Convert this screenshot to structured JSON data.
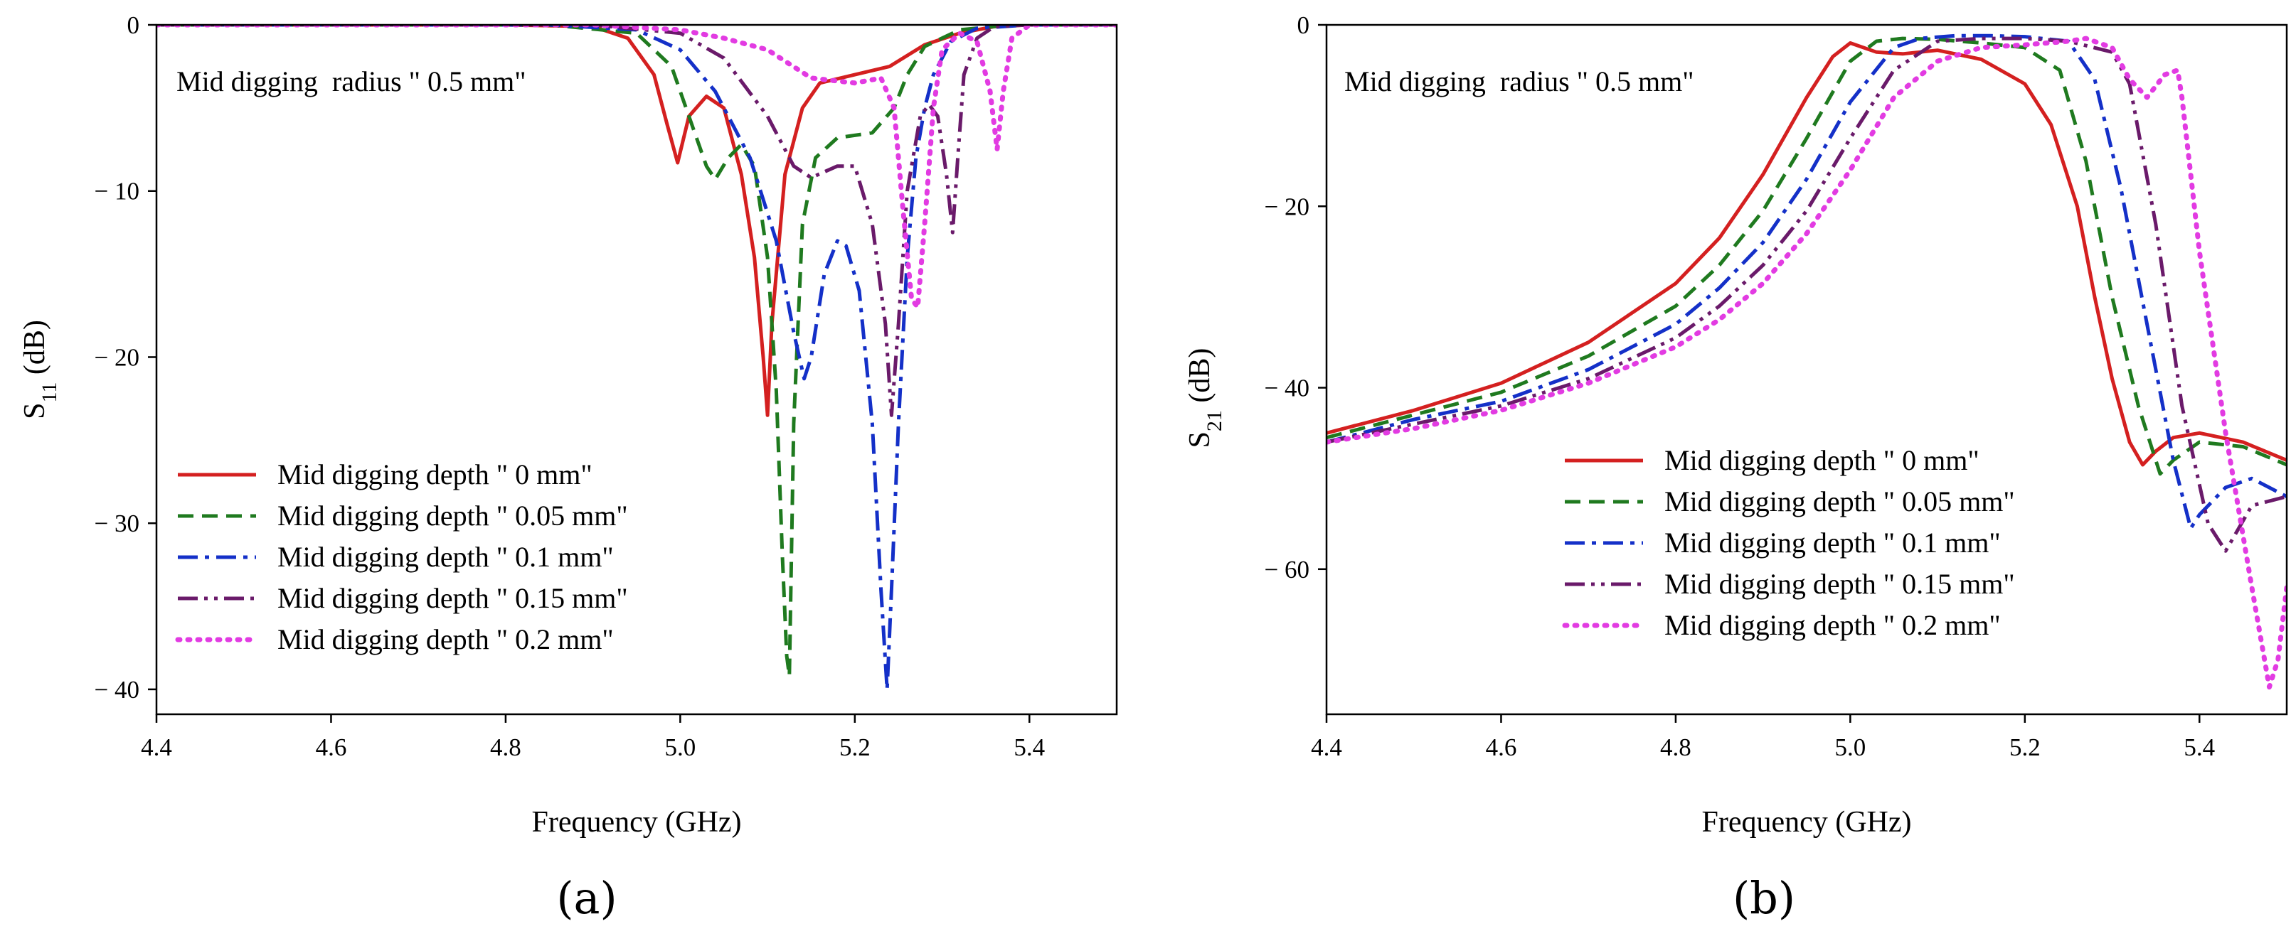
{
  "chart_data": [
    {
      "type": "line",
      "panel_label": "(a)",
      "annotation": "Mid digging  radius \" 0.5 mm\"",
      "xlabel": "Frequency (GHz)",
      "ylabel": "S11 (dB)",
      "ylabel_main": "S",
      "ylabel_sub": "11",
      "ylabel_unit": " (dB)",
      "xlim": [
        4.4,
        5.5
      ],
      "ylim": [
        -41.5,
        0
      ],
      "xticks": [
        4.4,
        4.6,
        4.8,
        5.0,
        5.2,
        5.4
      ],
      "xtick_labels": [
        "4.4",
        "4.6",
        "4.8",
        "5.0",
        "5.2",
        "5.4"
      ],
      "yticks": [
        0,
        -10,
        -20,
        -30,
        -40
      ],
      "ytick_labels": [
        "0",
        "− 10",
        "− 20",
        "− 30",
        "− 40"
      ],
      "legend_position": "lower-left",
      "series": [
        {
          "name": "Mid digging depth \" 0 mm\"",
          "color": "#d42020",
          "style": "solid",
          "x": [
            4.4,
            4.8,
            4.9,
            4.94,
            4.97,
            4.985,
            4.997,
            5.01,
            5.03,
            5.05,
            5.07,
            5.085,
            5.095,
            5.1,
            5.105,
            5.12,
            5.14,
            5.16,
            5.2,
            5.24,
            5.28,
            5.32,
            5.36,
            5.4,
            5.5
          ],
          "y": [
            0,
            0,
            -0.1,
            -0.8,
            -3,
            -6,
            -8.3,
            -5.5,
            -4.3,
            -5,
            -9,
            -14,
            -20,
            -23.5,
            -18,
            -9,
            -5,
            -3.5,
            -3,
            -2.5,
            -1.2,
            -0.5,
            -0.1,
            0,
            0
          ]
        },
        {
          "name": "Mid digging depth \" 0.05 mm\"",
          "color": "#1f7a1f",
          "style": "dashed",
          "x": [
            4.4,
            4.85,
            4.95,
            4.99,
            5.01,
            5.03,
            5.04,
            5.055,
            5.07,
            5.085,
            5.1,
            5.11,
            5.117,
            5.122,
            5.125,
            5.13,
            5.14,
            5.155,
            5.18,
            5.22,
            5.245,
            5.26,
            5.28,
            5.32,
            5.38,
            5.5
          ],
          "y": [
            0,
            0,
            -0.5,
            -2.5,
            -5.5,
            -8.5,
            -9.3,
            -8,
            -7.2,
            -8.5,
            -14,
            -22,
            -32,
            -38,
            -39.2,
            -24,
            -12,
            -8,
            -6.8,
            -6.5,
            -5,
            -3,
            -1.3,
            -0.3,
            0,
            0
          ]
        },
        {
          "name": "Mid digging depth \" 0.1 mm\"",
          "color": "#1430c8",
          "style": "dashdot",
          "x": [
            4.4,
            4.85,
            4.95,
            5.0,
            5.04,
            5.08,
            5.11,
            5.13,
            5.142,
            5.15,
            5.165,
            5.18,
            5.19,
            5.205,
            5.22,
            5.23,
            5.237,
            5.242,
            5.25,
            5.26,
            5.27,
            5.28,
            5.29,
            5.31,
            5.34,
            5.4,
            5.5
          ],
          "y": [
            0,
            0,
            -0.3,
            -1.5,
            -4,
            -8,
            -13,
            -18.5,
            -21.3,
            -20,
            -15,
            -13,
            -13.3,
            -16,
            -24,
            -34,
            -40,
            -34,
            -24,
            -14,
            -8,
            -5,
            -3,
            -1,
            -0.2,
            0,
            0
          ]
        },
        {
          "name": "Mid digging depth \" 0.15 mm\"",
          "color": "#6a1a6a",
          "style": "dashdotdot",
          "x": [
            4.4,
            4.9,
            5.0,
            5.05,
            5.1,
            5.13,
            5.15,
            5.18,
            5.2,
            5.22,
            5.235,
            5.242,
            5.25,
            5.26,
            5.275,
            5.285,
            5.295,
            5.305,
            5.312,
            5.318,
            5.325,
            5.34,
            5.36,
            5.4,
            5.5
          ],
          "y": [
            0,
            0,
            -0.5,
            -2,
            -5.5,
            -8.5,
            -9.2,
            -8.5,
            -8.5,
            -12,
            -18,
            -23.5,
            -18,
            -10,
            -5.5,
            -4.8,
            -5.5,
            -9,
            -12.5,
            -8,
            -3,
            -0.8,
            -0.1,
            0,
            0
          ]
        },
        {
          "name": "Mid digging depth \" 0.2 mm\"",
          "color": "#e23be2",
          "style": "dotted",
          "x": [
            4.4,
            4.9,
            5.0,
            5.05,
            5.1,
            5.15,
            5.2,
            5.23,
            5.245,
            5.255,
            5.265,
            5.272,
            5.28,
            5.29,
            5.3,
            5.32,
            5.34,
            5.355,
            5.363,
            5.37,
            5.38,
            5.4,
            5.5
          ],
          "y": [
            0,
            0,
            -0.3,
            -0.8,
            -1.5,
            -3.2,
            -3.5,
            -3.2,
            -5,
            -11,
            -16.5,
            -17,
            -12,
            -5,
            -1.5,
            -0.5,
            -1,
            -4,
            -7.5,
            -4,
            -0.8,
            0,
            0
          ]
        }
      ]
    },
    {
      "type": "line",
      "panel_label": "(b)",
      "annotation": "Mid digging  radius \" 0.5 mm\"",
      "xlabel": "Frequency (GHz)",
      "ylabel": "S21 (dB)",
      "ylabel_main": "S",
      "ylabel_sub": "21",
      "ylabel_unit": " (dB)",
      "xlim": [
        4.4,
        5.5
      ],
      "ylim": [
        -76,
        0
      ],
      "xticks": [
        4.4,
        4.6,
        4.8,
        5.0,
        5.2,
        5.4
      ],
      "xtick_labels": [
        "4.4",
        "4.6",
        "4.8",
        "5.0",
        "5.2",
        "5.4"
      ],
      "yticks": [
        0,
        -20,
        -40,
        -60
      ],
      "ytick_labels": [
        "0",
        "− 20",
        "− 40",
        "− 60"
      ],
      "legend_position": "lower-right",
      "series": [
        {
          "name": "Mid digging depth \" 0 mm\"",
          "color": "#d42020",
          "style": "solid",
          "x": [
            4.4,
            4.5,
            4.6,
            4.7,
            4.8,
            4.85,
            4.9,
            4.95,
            4.98,
            5.0,
            5.03,
            5.06,
            5.1,
            5.15,
            5.2,
            5.23,
            5.26,
            5.28,
            5.3,
            5.32,
            5.335,
            5.35,
            5.37,
            5.4,
            5.45,
            5.5
          ],
          "y": [
            -45,
            -42.5,
            -39.5,
            -35,
            -28.5,
            -23.5,
            -16.5,
            -8,
            -3.5,
            -2,
            -3,
            -3.2,
            -2.8,
            -3.8,
            -6.5,
            -11,
            -20,
            -30,
            -39,
            -46,
            -48.5,
            -47,
            -45.5,
            -45,
            -46,
            -48
          ]
        },
        {
          "name": "Mid digging depth \" 0.05 mm\"",
          "color": "#1f7a1f",
          "style": "dashed",
          "x": [
            4.4,
            4.5,
            4.6,
            4.7,
            4.8,
            4.85,
            4.9,
            4.95,
            5.0,
            5.03,
            5.06,
            5.1,
            5.15,
            5.2,
            5.24,
            5.27,
            5.3,
            5.33,
            5.355,
            5.37,
            5.4,
            5.45,
            5.5
          ],
          "y": [
            -45.5,
            -43,
            -40.5,
            -36.5,
            -31,
            -26.5,
            -20.5,
            -12.5,
            -4,
            -1.8,
            -1.5,
            -1.6,
            -2,
            -2.5,
            -5,
            -15,
            -30,
            -42,
            -49.5,
            -48,
            -46,
            -46.5,
            -48.5
          ]
        },
        {
          "name": "Mid digging depth \" 0.1 mm\"",
          "color": "#1430c8",
          "style": "dashdot",
          "x": [
            4.4,
            4.5,
            4.6,
            4.7,
            4.8,
            4.85,
            4.9,
            4.95,
            5.0,
            5.05,
            5.08,
            5.12,
            5.16,
            5.2,
            5.25,
            5.28,
            5.31,
            5.34,
            5.37,
            5.39,
            5.4,
            5.43,
            5.46,
            5.5
          ],
          "y": [
            -46,
            -43.5,
            -41.5,
            -38,
            -33,
            -29,
            -24,
            -17,
            -8.5,
            -2.5,
            -1.5,
            -1.2,
            -1.2,
            -1.3,
            -1.8,
            -6,
            -18,
            -33,
            -48,
            -55.5,
            -54,
            -51,
            -50,
            -52
          ]
        },
        {
          "name": "Mid digging depth \" 0.15 mm\"",
          "color": "#6a1a6a",
          "style": "dashdotdot",
          "x": [
            4.4,
            4.5,
            4.6,
            4.7,
            4.8,
            4.85,
            4.9,
            4.95,
            5.0,
            5.05,
            5.1,
            5.15,
            5.2,
            5.25,
            5.3,
            5.32,
            5.35,
            5.38,
            5.41,
            5.43,
            5.46,
            5.5
          ],
          "y": [
            -46,
            -44,
            -42,
            -39,
            -34.5,
            -31,
            -26.5,
            -20.5,
            -12.5,
            -5,
            -1.8,
            -1.5,
            -1.5,
            -1.8,
            -3,
            -6.5,
            -22,
            -42,
            -55,
            -58,
            -53,
            -52
          ]
        },
        {
          "name": "Mid digging depth \" 0.2 mm\"",
          "color": "#e23be2",
          "style": "dotted",
          "x": [
            4.4,
            4.5,
            4.6,
            4.7,
            4.8,
            4.85,
            4.9,
            4.95,
            5.0,
            5.05,
            5.1,
            5.15,
            5.2,
            5.25,
            5.27,
            5.3,
            5.32,
            5.34,
            5.36,
            5.375,
            5.38,
            5.4,
            5.43,
            5.46,
            5.48,
            5.49,
            5.5
          ],
          "y": [
            -46,
            -44.5,
            -42.5,
            -39.5,
            -35.5,
            -32.5,
            -28.5,
            -23,
            -16,
            -8,
            -4,
            -2.5,
            -2.2,
            -1.8,
            -1.5,
            -2.5,
            -6,
            -8,
            -5.5,
            -5,
            -8,
            -25,
            -45,
            -62,
            -73,
            -70,
            -62
          ]
        }
      ]
    }
  ]
}
